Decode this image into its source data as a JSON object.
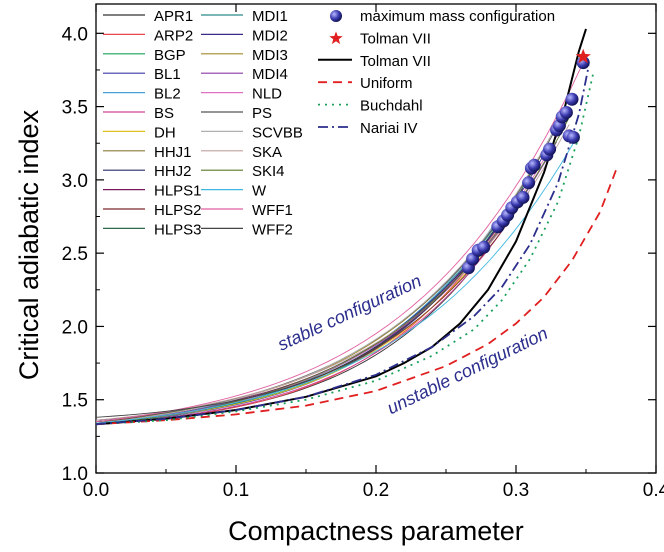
{
  "chart_data": {
    "type": "line",
    "xlabel": "Compactness parameter",
    "ylabel": "Critical adiabatic index",
    "xlim": [
      0.0,
      0.4
    ],
    "ylim": [
      1.0,
      4.2
    ],
    "x_ticks": [
      "0.0",
      "0.1",
      "0.2",
      "0.3",
      "0.4"
    ],
    "y_ticks": [
      "1.0",
      "1.5",
      "2.0",
      "2.5",
      "3.0",
      "3.5",
      "4.0"
    ],
    "grid": false,
    "legend_position": "top-left",
    "annotations": [
      {
        "text": "stable configuration",
        "color": "#2b2e8c"
      },
      {
        "text": "unstable configuration",
        "color": "#2b2e8c"
      }
    ],
    "eos_legend": [
      {
        "name": "APR1",
        "color": "#333333"
      },
      {
        "name": "ARP2",
        "color": "#e8474c"
      },
      {
        "name": "BGP",
        "color": "#1aa05a"
      },
      {
        "name": "BL1",
        "color": "#3a3aa8"
      },
      {
        "name": "BL2",
        "color": "#4aa0d8"
      },
      {
        "name": "BS",
        "color": "#d0449a"
      },
      {
        "name": "DH",
        "color": "#e0c020"
      },
      {
        "name": "HHJ1",
        "color": "#8a7a3a"
      },
      {
        "name": "HHJ2",
        "color": "#2a2a6a"
      },
      {
        "name": "HLPS1",
        "color": "#7a1a5a"
      },
      {
        "name": "HLPS2",
        "color": "#7a2a2a"
      },
      {
        "name": "HLPS3",
        "color": "#2a6a4a"
      },
      {
        "name": "MDI1",
        "color": "#2a8a8a"
      },
      {
        "name": "MDI2",
        "color": "#3a2a8a"
      },
      {
        "name": "MDI3",
        "color": "#a08a2a"
      },
      {
        "name": "MDI4",
        "color": "#8a3aa8"
      },
      {
        "name": "NLD",
        "color": "#e070c0"
      },
      {
        "name": "PS",
        "color": "#555555"
      },
      {
        "name": "SCVBB",
        "color": "#b0b0b0"
      },
      {
        "name": "SKA",
        "color": "#c0a0a0"
      },
      {
        "name": "SKI4",
        "color": "#5a7a2a"
      },
      {
        "name": "W",
        "color": "#40b8e0"
      },
      {
        "name": "WFF1",
        "color": "#e060a0"
      },
      {
        "name": "WFF2",
        "color": "#444444"
      }
    ],
    "model_legend": [
      {
        "name": "maximum mass configuration",
        "kind": "marker-circle",
        "color": "#3a3ab0"
      },
      {
        "name": "Tolman VII",
        "kind": "marker-star",
        "color": "#e02020"
      },
      {
        "name": "Tolman VII",
        "kind": "line-solid",
        "color": "#000000"
      },
      {
        "name": "Uniform",
        "kind": "line-dash",
        "color": "#e02020"
      },
      {
        "name": "Buchdahl",
        "kind": "line-dot",
        "color": "#1aa05a"
      },
      {
        "name": "Nariai IV",
        "kind": "line-dashdot",
        "color": "#2b2e8c"
      }
    ],
    "series": [
      {
        "name": "Tolman VII",
        "style": "solid",
        "color": "#000000",
        "x": [
          0.0,
          0.05,
          0.1,
          0.15,
          0.2,
          0.22,
          0.24,
          0.26,
          0.28,
          0.3,
          0.32,
          0.335,
          0.345,
          0.35
        ],
        "y": [
          1.333,
          1.37,
          1.43,
          1.52,
          1.66,
          1.75,
          1.86,
          2.02,
          2.25,
          2.58,
          3.05,
          3.5,
          3.88,
          4.03
        ]
      },
      {
        "name": "Uniform",
        "style": "dash",
        "color": "#e02020",
        "x": [
          0.0,
          0.05,
          0.1,
          0.15,
          0.2,
          0.25,
          0.28,
          0.3,
          0.32,
          0.34,
          0.36,
          0.372
        ],
        "y": [
          1.333,
          1.36,
          1.4,
          1.46,
          1.56,
          1.73,
          1.88,
          2.02,
          2.2,
          2.45,
          2.78,
          3.08
        ]
      },
      {
        "name": "Buchdahl",
        "style": "dot",
        "color": "#1aa05a",
        "x": [
          0.0,
          0.05,
          0.1,
          0.15,
          0.2,
          0.24,
          0.27,
          0.29,
          0.31,
          0.33,
          0.345,
          0.355
        ],
        "y": [
          1.333,
          1.36,
          1.42,
          1.5,
          1.63,
          1.8,
          1.98,
          2.18,
          2.46,
          2.85,
          3.3,
          3.72
        ]
      },
      {
        "name": "Nariai IV",
        "style": "dashdot",
        "color": "#2b2e8c",
        "x": [
          0.0,
          0.05,
          0.1,
          0.15,
          0.2,
          0.24,
          0.27,
          0.29,
          0.31,
          0.33,
          0.345,
          0.352
        ],
        "y": [
          1.333,
          1.37,
          1.43,
          1.52,
          1.67,
          1.86,
          2.07,
          2.27,
          2.56,
          2.98,
          3.45,
          3.78
        ]
      }
    ],
    "eos_curve_y0": [
      1.34,
      1.33,
      1.35,
      1.34,
      1.36,
      1.33,
      1.34,
      1.35,
      1.34,
      1.36,
      1.35,
      1.34,
      1.33,
      1.34,
      1.35,
      1.34,
      1.33,
      1.35,
      1.34,
      1.36,
      1.33,
      1.34,
      1.35,
      1.38
    ],
    "max_mass_points": {
      "x": [
        0.266,
        0.269,
        0.273,
        0.277,
        0.287,
        0.291,
        0.294,
        0.297,
        0.301,
        0.305,
        0.309,
        0.311,
        0.313,
        0.322,
        0.324,
        0.329,
        0.331,
        0.333,
        0.336,
        0.338,
        0.34,
        0.341,
        0.348
      ],
      "y": [
        2.4,
        2.46,
        2.52,
        2.54,
        2.68,
        2.72,
        2.76,
        2.81,
        2.85,
        2.88,
        2.98,
        3.08,
        3.1,
        3.17,
        3.21,
        3.34,
        3.37,
        3.43,
        3.46,
        3.3,
        3.55,
        3.29,
        3.8
      ]
    },
    "tolman_star": {
      "x": 0.348,
      "y": 3.84
    }
  }
}
